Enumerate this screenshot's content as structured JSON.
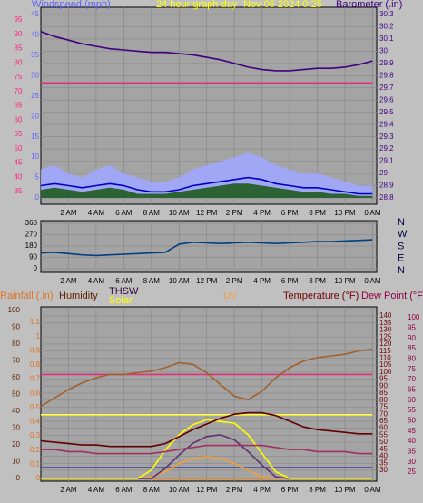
{
  "chart_data": [
    {
      "type": "line",
      "title": "24 hour graph day",
      "subtitle": "Nov 06 2024 0:25",
      "x": [
        0,
        1,
        2,
        3,
        4,
        5,
        6,
        7,
        8,
        9,
        10,
        11,
        12,
        13,
        14,
        15,
        16,
        17,
        18,
        19,
        20,
        21,
        22,
        23,
        24
      ],
      "xlim": [
        0,
        24.3
      ],
      "xticks": [
        {
          "value": 2,
          "label": "2 AM"
        },
        {
          "value": 4,
          "label": "4 AM"
        },
        {
          "value": 6,
          "label": "6 AM"
        },
        {
          "value": 8,
          "label": "8 AM"
        },
        {
          "value": 10,
          "label": "10 AM"
        },
        {
          "value": 12,
          "label": "12 PM"
        },
        {
          "value": 14,
          "label": "2 PM"
        },
        {
          "value": 16,
          "label": "4 PM"
        },
        {
          "value": 18,
          "label": "6 PM"
        },
        {
          "value": 20,
          "label": "8 PM"
        },
        {
          "value": 22,
          "label": "10 PM"
        },
        {
          "value": 24,
          "label": "0 AM"
        }
      ],
      "grid": true,
      "axes": [
        {
          "lim": [
            30.6,
            99.4
          ],
          "ticks": [
            35,
            40,
            45,
            50,
            55,
            60,
            65,
            70,
            75,
            80,
            85,
            90,
            95
          ],
          "color": "#ff2080"
        },
        {
          "label": "Windspeed (mph)",
          "lim": [
            -1.56,
            46.8
          ],
          "ticks": [
            0,
            5,
            10,
            15,
            20,
            25,
            30,
            35,
            40,
            45
          ],
          "color": "#6060ff"
        },
        {
          "label": "Barometer (.in)",
          "lim": [
            28.748,
            30.359
          ],
          "ticks": [
            28.8,
            28.9,
            29,
            29.1,
            29.2,
            29.3,
            29.4,
            29.5,
            29.6,
            29.7,
            29.8,
            29.9,
            30,
            30.1,
            30.2,
            30.3
          ],
          "color": "#400080",
          "grid": true
        }
      ],
      "series": [
        {
          "axis": 1,
          "style": "area",
          "color": "#a0a8ff",
          "values": [
            7,
            8,
            6,
            5,
            7,
            8,
            6,
            5,
            4,
            4,
            5,
            7,
            8,
            9,
            10,
            11,
            10,
            8,
            7,
            6,
            6,
            5,
            4,
            3,
            3
          ]
        },
        {
          "axis": 1,
          "style": "area",
          "color": "#205a20",
          "values": [
            2,
            2.5,
            2,
            1.5,
            2,
            2.5,
            2,
            1,
            1,
            1,
            1.5,
            2,
            2.5,
            3,
            3.5,
            3.5,
            3,
            2.5,
            2,
            1.5,
            1.5,
            1,
            1,
            0.5,
            0.5
          ]
        },
        {
          "axis": 1,
          "style": "line",
          "color": "#0000c0",
          "values": [
            3,
            3.5,
            3,
            2.5,
            3,
            3.5,
            3,
            2,
            1.5,
            1.5,
            2,
            3,
            3.5,
            4,
            4.5,
            5,
            4.5,
            3.5,
            3,
            2.5,
            2.5,
            2,
            1.5,
            1,
            1
          ]
        },
        {
          "axis": 0,
          "style": "line",
          "color": "#e0307a",
          "values": [
            73,
            73,
            73,
            73,
            73,
            73,
            73,
            73,
            73,
            73,
            73,
            73,
            73,
            73,
            73,
            73,
            73,
            73,
            73,
            73,
            73,
            73,
            73,
            73,
            73
          ]
        },
        {
          "axis": 2,
          "style": "line",
          "color": "#400080",
          "values": [
            30.16,
            30.12,
            30.09,
            30.06,
            30.04,
            30.02,
            30.01,
            30.0,
            29.99,
            29.99,
            29.98,
            29.97,
            29.95,
            29.93,
            29.9,
            29.87,
            29.85,
            29.84,
            29.84,
            29.85,
            29.86,
            29.86,
            29.87,
            29.89,
            29.92
          ]
        }
      ]
    },
    {
      "type": "line",
      "x": [
        0,
        1,
        2,
        3,
        4,
        5,
        6,
        7,
        8,
        9,
        10,
        11,
        12,
        13,
        14,
        15,
        16,
        17,
        18,
        19,
        20,
        21,
        22,
        23,
        24
      ],
      "xlim": [
        0,
        24.3
      ],
      "xticks": [
        {
          "value": 2,
          "label": "2 AM"
        },
        {
          "value": 4,
          "label": "4 AM"
        },
        {
          "value": 6,
          "label": "6 AM"
        },
        {
          "value": 8,
          "label": "8 AM"
        },
        {
          "value": 10,
          "label": "10 AM"
        },
        {
          "value": 12,
          "label": "12 PM"
        },
        {
          "value": 14,
          "label": "2 PM"
        },
        {
          "value": 16,
          "label": "4 PM"
        },
        {
          "value": 18,
          "label": "6 PM"
        },
        {
          "value": 20,
          "label": "8 PM"
        },
        {
          "value": 22,
          "label": "10 PM"
        },
        {
          "value": 24,
          "label": "0 AM"
        }
      ],
      "grid": true,
      "compass": [
        "N",
        "W",
        "S",
        "E",
        "N"
      ],
      "axes": [
        {
          "lim": [
            -28.8,
            381.6
          ],
          "ticks": [
            0,
            90,
            180,
            270,
            360
          ],
          "color": "#000000",
          "grid": true
        }
      ],
      "series": [
        {
          "axis": 0,
          "style": "line",
          "color": "#004080",
          "values": [
            125,
            130,
            120,
            110,
            105,
            110,
            115,
            120,
            125,
            130,
            195,
            210,
            205,
            200,
            205,
            210,
            205,
            200,
            205,
            210,
            215,
            215,
            220,
            225,
            230
          ]
        }
      ]
    },
    {
      "type": "line",
      "x": [
        0,
        1,
        2,
        3,
        4,
        5,
        6,
        7,
        8,
        9,
        10,
        11,
        12,
        13,
        14,
        15,
        16,
        17,
        18,
        19,
        20,
        21,
        22,
        23,
        24
      ],
      "xlim": [
        0,
        24.3
      ],
      "xticks": [
        {
          "value": 2,
          "label": "2 AM"
        },
        {
          "value": 4,
          "label": "4 AM"
        },
        {
          "value": 6,
          "label": "6 AM"
        },
        {
          "value": 8,
          "label": "8 AM"
        },
        {
          "value": 10,
          "label": "10 AM"
        },
        {
          "value": 12,
          "label": "12 PM"
        },
        {
          "value": 14,
          "label": "2 PM"
        },
        {
          "value": 16,
          "label": "4 PM"
        },
        {
          "value": 18,
          "label": "6 PM"
        },
        {
          "value": 20,
          "label": "8 PM"
        },
        {
          "value": 22,
          "label": "10 PM"
        },
        {
          "value": 24,
          "label": "0 AM"
        }
      ],
      "grid": true,
      "axes": [
        {
          "label": "Humidity",
          "lim": [
            -1.6,
            102.2
          ],
          "ticks": [
            0,
            10,
            20,
            30,
            40,
            50,
            60,
            70,
            80,
            90,
            100
          ],
          "color": "#602000"
        },
        {
          "label": "Rainfall (.in)",
          "lim": [
            -0.019,
            1.209
          ],
          "ticks": [
            0,
            0.1,
            0.2,
            0.3,
            0.4,
            0.5,
            0.6,
            0.7,
            0.8,
            0.9,
            1,
            1.1
          ],
          "color": "#e07020"
        },
        {
          "label": "Temperature (°F)",
          "lim": [
            22.2,
            146.5
          ],
          "ticks": [
            30,
            35,
            40,
            45,
            50,
            55,
            60,
            65,
            70,
            75,
            80,
            85,
            90,
            95,
            100,
            105,
            110,
            115,
            120,
            125,
            130,
            135,
            140
          ],
          "color": "#700000",
          "grid": true
        },
        {
          "label": "Dew Point (°F)",
          "lim": [
            20.6,
            105.3
          ],
          "ticks": [
            25,
            30,
            35,
            40,
            45,
            50,
            55,
            60,
            65,
            70,
            75,
            80,
            85,
            90,
            95,
            100
          ],
          "color": "#900040"
        }
      ],
      "series": [
        {
          "axis": 0,
          "style": "line",
          "color": "#e0307a",
          "values": [
            62,
            62,
            62,
            62,
            62,
            62,
            62,
            62,
            62,
            62,
            62,
            62,
            62,
            62,
            62,
            62,
            62,
            62,
            62,
            62,
            62,
            62,
            62,
            62,
            62
          ]
        },
        {
          "axis": 0,
          "style": "line",
          "color": "#ffff40",
          "values": [
            38,
            38,
            38,
            38,
            38,
            38,
            38,
            38,
            38,
            38,
            38,
            38,
            38,
            38,
            38,
            38,
            38,
            38,
            38,
            38,
            38,
            38,
            38,
            38,
            38
          ]
        },
        {
          "axis": 0,
          "style": "line",
          "color": "#4040a0",
          "values": [
            6.5,
            6.5,
            6.5,
            6.5,
            6.5,
            6.5,
            6.5,
            6.5,
            6.5,
            6.5,
            6.5,
            6.5,
            6.5,
            6.5,
            6.5,
            6.5,
            6.5,
            6.5,
            6.5,
            6.5,
            6.5,
            6.5,
            6.5,
            6.5,
            6.5
          ]
        },
        {
          "axis": 1,
          "style": "line",
          "color": "#ff8000",
          "values": [
            0,
            0,
            0,
            0,
            0,
            0,
            0,
            0,
            0,
            0,
            0,
            0,
            0,
            0,
            0,
            0,
            0,
            0,
            0,
            0,
            0,
            0,
            0,
            0,
            0
          ]
        },
        {
          "axis": 0,
          "style": "line",
          "color": "#a06030",
          "values": [
            43,
            48,
            53,
            57,
            60,
            62,
            62,
            63,
            64,
            66,
            69,
            68,
            63,
            56,
            49,
            47,
            52,
            60,
            66,
            70,
            72,
            73,
            74,
            76,
            77
          ]
        },
        {
          "name": "UV",
          "axis": 0,
          "style": "line",
          "color": "#f0a040",
          "values": [
            0,
            0,
            0,
            0,
            0,
            0,
            0,
            0,
            1,
            4,
            9,
            12,
            13,
            12,
            9,
            5,
            1,
            0,
            0,
            0,
            0,
            0,
            0,
            0,
            0
          ]
        },
        {
          "name": "THSW",
          "axis": 0,
          "style": "line",
          "color": "#603070",
          "values": [
            0,
            0,
            0,
            0,
            0,
            0,
            0,
            0,
            0,
            6,
            14,
            21,
            25,
            26,
            23,
            16,
            8,
            1,
            0,
            0,
            0,
            0,
            0,
            0,
            0
          ]
        },
        {
          "name": "Solar",
          "axis": 0,
          "style": "line",
          "color": "#ffff00",
          "values": [
            0,
            0,
            0,
            0,
            0,
            0,
            0,
            0,
            5,
            17,
            26,
            32,
            35,
            34,
            33,
            26,
            15,
            4,
            0,
            0,
            0,
            0,
            0,
            0,
            0
          ]
        },
        {
          "axis": 3,
          "style": "line",
          "color": "#a03060",
          "values": [
            36,
            36,
            35,
            35,
            34,
            34,
            34,
            34,
            34,
            35,
            36,
            37,
            38,
            38,
            38,
            38,
            38,
            37,
            36,
            36,
            35,
            35,
            35,
            34,
            34
          ]
        },
        {
          "axis": 2,
          "style": "line",
          "color": "#600000",
          "values": [
            51,
            50,
            49,
            48,
            48,
            47,
            47,
            47,
            47,
            49,
            54,
            59,
            63,
            67,
            70,
            71,
            71,
            69,
            65,
            61,
            59,
            58,
            57,
            56,
            56
          ]
        }
      ]
    }
  ]
}
